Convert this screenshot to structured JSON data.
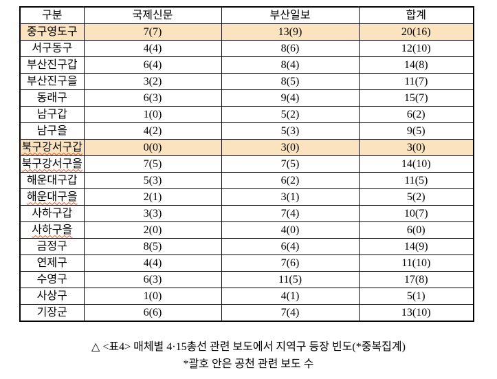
{
  "table": {
    "headers": [
      "구분",
      "국제신문",
      "부산일보",
      "합계"
    ],
    "rows": [
      {
        "label": "중구영도구",
        "kookje": "7(7)",
        "busan": "13(9)",
        "total": "20(16)",
        "highlight": true,
        "misspell": false
      },
      {
        "label": "서구동구",
        "kookje": "4(4)",
        "busan": "8(6)",
        "total": "12(10)",
        "highlight": false,
        "misspell": false
      },
      {
        "label": "부산진구갑",
        "kookje": "6(4)",
        "busan": "8(4)",
        "total": "14(8)",
        "highlight": false,
        "misspell": false
      },
      {
        "label": "부산진구을",
        "kookje": "3(2)",
        "busan": "8(5)",
        "total": "11(7)",
        "highlight": false,
        "misspell": false
      },
      {
        "label": "동래구",
        "kookje": "6(3)",
        "busan": "9(4)",
        "total": "15(7)",
        "highlight": false,
        "misspell": false
      },
      {
        "label": "남구갑",
        "kookje": "1(0)",
        "busan": "5(2)",
        "total": "6(2)",
        "highlight": false,
        "misspell": false
      },
      {
        "label": "남구을",
        "kookje": "4(2)",
        "busan": "5(3)",
        "total": "9(5)",
        "highlight": false,
        "misspell": false
      },
      {
        "label": "북구강서구갑",
        "kookje": "0(0)",
        "busan": "3(0)",
        "total": "3(0)",
        "highlight": true,
        "misspell": true
      },
      {
        "label": "북구강서구을",
        "kookje": "7(5)",
        "busan": "7(5)",
        "total": "14(10)",
        "highlight": false,
        "misspell": true
      },
      {
        "label": "해운대구갑",
        "kookje": "5(3)",
        "busan": "6(2)",
        "total": "11(5)",
        "highlight": false,
        "misspell": false
      },
      {
        "label": "해운대구을",
        "kookje": "2(1)",
        "busan": "3(1)",
        "total": "5(2)",
        "highlight": false,
        "misspell": true
      },
      {
        "label": "사하구갑",
        "kookje": "3(3)",
        "busan": "7(4)",
        "total": "10(7)",
        "highlight": false,
        "misspell": false
      },
      {
        "label": "사하구을",
        "kookje": "2(0)",
        "busan": "4(0)",
        "total": "6(0)",
        "highlight": false,
        "misspell": true
      },
      {
        "label": "금정구",
        "kookje": "8(5)",
        "busan": "6(4)",
        "total": "14(9)",
        "highlight": false,
        "misspell": false
      },
      {
        "label": "연제구",
        "kookje": "4(4)",
        "busan": "7(6)",
        "total": "11(10)",
        "highlight": false,
        "misspell": false
      },
      {
        "label": "수영구",
        "kookje": "6(3)",
        "busan": "11(5)",
        "total": "17(8)",
        "highlight": false,
        "misspell": false
      },
      {
        "label": "사상구",
        "kookje": "1(0)",
        "busan": "4(1)",
        "total": "5(1)",
        "highlight": false,
        "misspell": false
      },
      {
        "label": "기장군",
        "kookje": "6(6)",
        "busan": "7(4)",
        "total": "13(10)",
        "highlight": false,
        "misspell": false
      }
    ]
  },
  "caption": {
    "line1": "△ <표4> 매체별 4·15총선 관련 보도에서 지역구 등장 빈도(*중복집계)",
    "line2": "*괄호 안은 공천 관련 보도 수"
  },
  "colors": {
    "row_highlight": "#fae3be",
    "spellcheck_underline": "#e8501e",
    "border": "#000000",
    "text": "#000000"
  }
}
